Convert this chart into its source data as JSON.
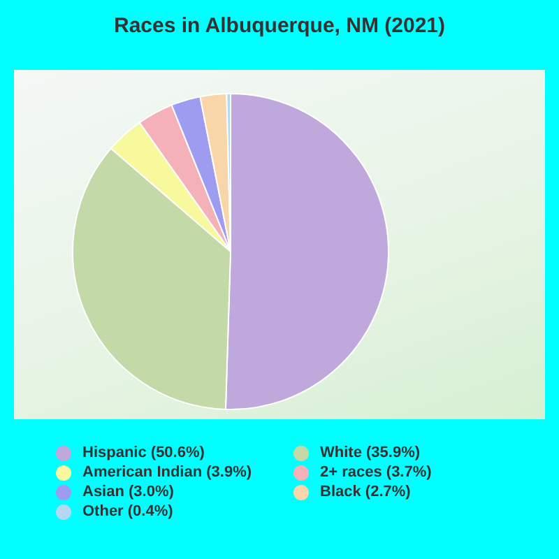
{
  "chart_data": {
    "type": "pie",
    "title": "Races in Albuquerque, NM (2021)",
    "categories": [
      "Hispanic (50.6%)",
      "White (35.9%)",
      "American Indian (3.9%)",
      "2+ races (3.7%)",
      "Asian (3.0%)",
      "Black (2.7%)",
      "Other (0.4%)"
    ],
    "values": [
      50.6,
      35.9,
      3.9,
      3.7,
      3.0,
      2.7,
      0.4
    ],
    "colors": [
      "#bea8dc",
      "#c4d9a8",
      "#f8f89c",
      "#f4b2b8",
      "#9d9cf0",
      "#f9d6aa",
      "#b4d8f2"
    ],
    "legend": "bottom"
  }
}
